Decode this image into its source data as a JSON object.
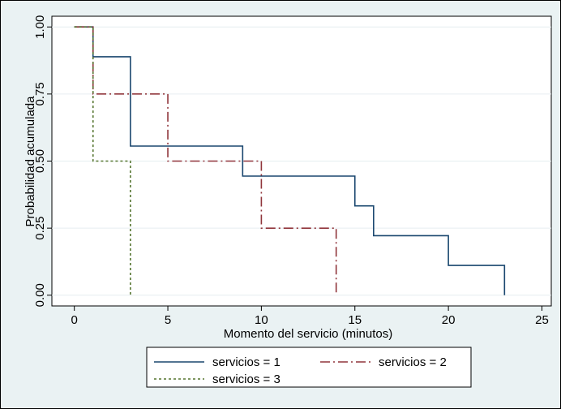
{
  "chart_data": {
    "type": "line",
    "subtype": "step (Kaplan-Meier style)",
    "xlabel": "Momento del servicio (minutos)",
    "ylabel": "Probabilidad acumulada",
    "xlim": [
      -1.2,
      25.5
    ],
    "ylim": [
      -0.04,
      1.04
    ],
    "x_ticks": [
      0,
      5,
      10,
      15,
      20,
      25
    ],
    "x_tick_labels": [
      "0",
      "5",
      "10",
      "15",
      "20",
      "25"
    ],
    "y_ticks": [
      0,
      0.25,
      0.5,
      0.75,
      1
    ],
    "y_tick_labels": [
      "0.00",
      "0.25",
      "0.50",
      "0.75",
      "1.00"
    ],
    "grid": "horizontal",
    "legend_position": "bottom",
    "series": [
      {
        "name": "servicios = 1",
        "color": "#1a476f",
        "line_style": "solid",
        "x": [
          0,
          1,
          3,
          9,
          15,
          16,
          20,
          23
        ],
        "y": [
          1,
          0.889,
          0.556,
          0.444,
          0.333,
          0.222,
          0.111,
          0
        ]
      },
      {
        "name": "servicios = 2",
        "color": "#90353b",
        "line_style": "dash-dot",
        "x": [
          0,
          1,
          5,
          10,
          14
        ],
        "y": [
          1,
          0.75,
          0.5,
          0.25,
          0
        ]
      },
      {
        "name": "servicios = 3",
        "color": "#55752f",
        "line_style": "dashed",
        "x": [
          0,
          1,
          3
        ],
        "y": [
          1,
          0.5,
          0
        ]
      }
    ]
  }
}
